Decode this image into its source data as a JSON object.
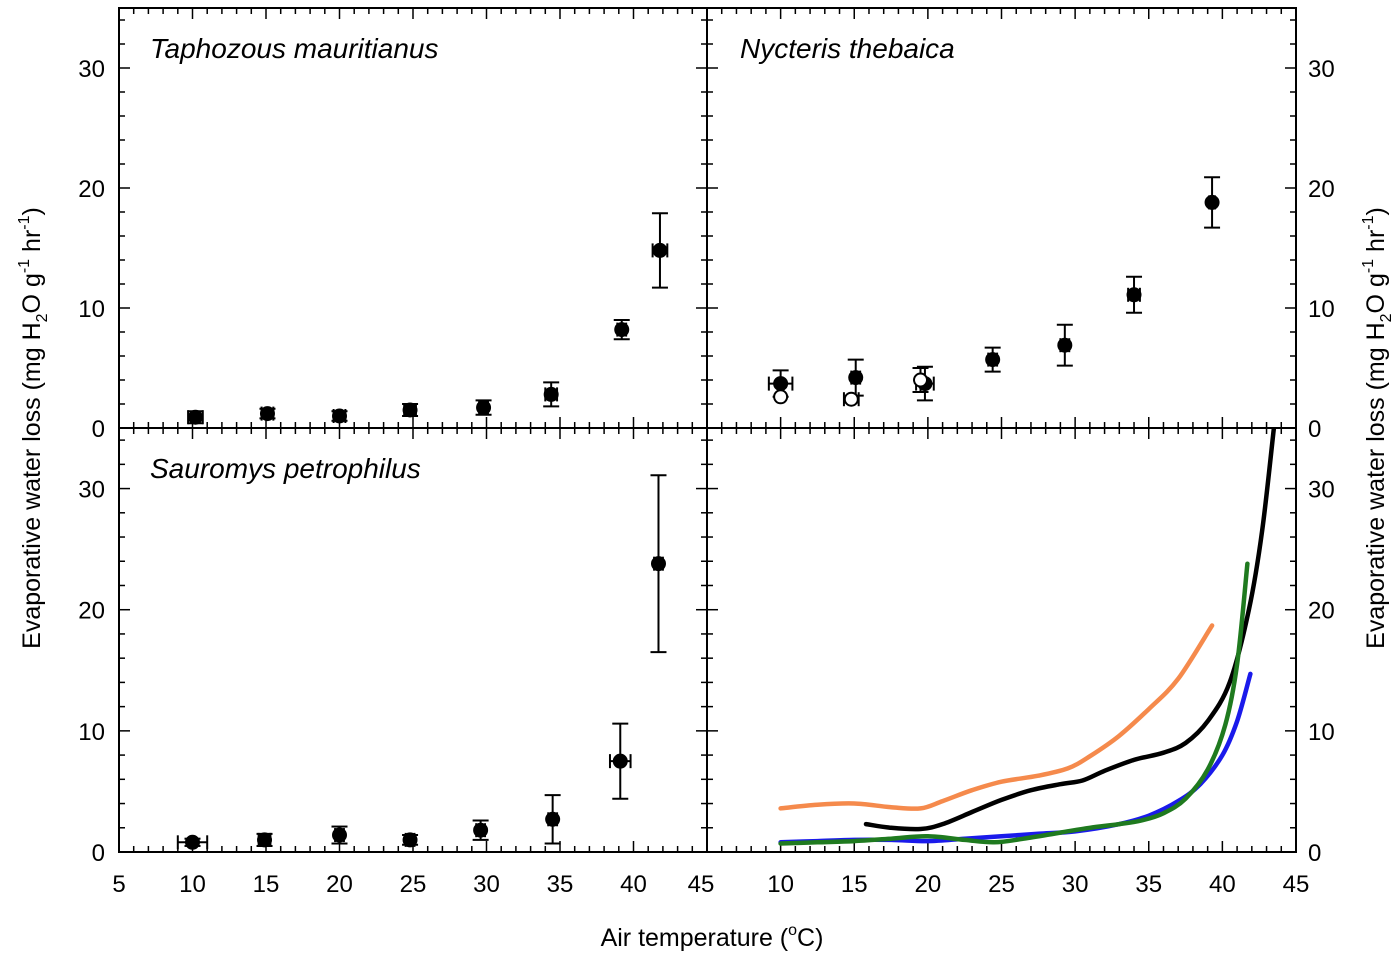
{
  "figure": {
    "xlabel_main": "Air temperature (",
    "xlabel_sup": "o",
    "xlabel_tail": "C)",
    "ylabel_main": "Evaporative water loss (mg H",
    "ylabel_sub": "2",
    "ylabel_mid1": "O g",
    "ylabel_sup1": "-1",
    "ylabel_mid2": " hr",
    "ylabel_sup2": "-1",
    "ylabel_tail": ")"
  },
  "chart_data": [
    {
      "panel": "top-left",
      "type": "scatter",
      "title": "Taphozous mauritianus",
      "xlim": [
        5,
        45
      ],
      "ylim": [
        0,
        35
      ],
      "yticks": [
        0,
        10,
        20,
        30
      ],
      "series": [
        {
          "filled": true,
          "color": "#000000",
          "points": [
            {
              "x": 10.2,
              "y": 0.9,
              "yerr": 0.5,
              "xerr": 0.5
            },
            {
              "x": 15.1,
              "y": 1.2,
              "yerr": 0.4,
              "xerr": 0.4
            },
            {
              "x": 20.0,
              "y": 1.0,
              "yerr": 0.4,
              "xerr": 0.4
            },
            {
              "x": 24.8,
              "y": 1.5,
              "yerr": 0.5,
              "xerr": 0.4
            },
            {
              "x": 29.8,
              "y": 1.7,
              "yerr": 0.6,
              "xerr": 0.3
            },
            {
              "x": 34.4,
              "y": 2.8,
              "yerr": 1.0,
              "xerr": 0.4
            },
            {
              "x": 39.2,
              "y": 8.2,
              "yerr": 0.8,
              "xerr": 0.3
            },
            {
              "x": 41.8,
              "y": 14.8,
              "yerr": 3.1,
              "xerr": 0.5
            }
          ]
        }
      ]
    },
    {
      "panel": "top-right",
      "type": "scatter",
      "title": "Nycteris thebaica",
      "xlim": [
        5,
        45
      ],
      "ylim": [
        0,
        35
      ],
      "yticks": [
        0,
        10,
        20,
        30
      ],
      "series": [
        {
          "filled": true,
          "color": "#000000",
          "points": [
            {
              "x": 10.0,
              "y": 3.7,
              "yerr": 1.1,
              "xerr": 0.8
            },
            {
              "x": 15.1,
              "y": 4.2,
              "yerr": 1.5,
              "xerr": 0.3
            },
            {
              "x": 19.8,
              "y": 3.7,
              "yerr": 1.4,
              "xerr": 0.6
            },
            {
              "x": 24.4,
              "y": 5.7,
              "yerr": 1.0,
              "xerr": 0.3
            },
            {
              "x": 29.3,
              "y": 6.9,
              "yerr": 1.7,
              "xerr": 0.3
            },
            {
              "x": 34.0,
              "y": 11.1,
              "yerr": 1.5,
              "xerr": 0.4
            },
            {
              "x": 39.3,
              "y": 18.8,
              "yerr": 2.1,
              "xerr": 0.2
            }
          ]
        },
        {
          "filled": false,
          "color": "#000000",
          "points": [
            {
              "x": 10.0,
              "y": 2.6,
              "yerr": 0,
              "xerr": 0
            },
            {
              "x": 14.8,
              "y": 2.4,
              "yerr": 0,
              "xerr": 0.5
            },
            {
              "x": 19.5,
              "y": 4.0,
              "yerr": 1.0,
              "xerr": 0
            }
          ]
        }
      ]
    },
    {
      "panel": "bottom-left",
      "type": "scatter",
      "title": "Sauromys petrophilus",
      "xlim": [
        5,
        45
      ],
      "ylim": [
        0,
        35
      ],
      "yticks": [
        0,
        10,
        20,
        30
      ],
      "xticks": [
        5,
        10,
        15,
        20,
        25,
        30,
        35,
        40,
        45
      ],
      "series": [
        {
          "filled": true,
          "color": "#000000",
          "points": [
            {
              "x": 10.0,
              "y": 0.8,
              "yerr": 0.3,
              "xerr": 1.0
            },
            {
              "x": 14.9,
              "y": 1.0,
              "yerr": 0.5,
              "xerr": 0.4
            },
            {
              "x": 20.0,
              "y": 1.4,
              "yerr": 0.7,
              "xerr": 0.3
            },
            {
              "x": 24.8,
              "y": 1.0,
              "yerr": 0.4,
              "xerr": 0.3
            },
            {
              "x": 29.6,
              "y": 1.8,
              "yerr": 0.8,
              "xerr": 0.3
            },
            {
              "x": 34.5,
              "y": 2.7,
              "yerr": 2.0,
              "xerr": 0.3
            },
            {
              "x": 39.1,
              "y": 7.5,
              "yerr": 3.1,
              "xerr": 0.7
            },
            {
              "x": 41.7,
              "y": 23.8,
              "yerr": 7.3,
              "xerr": 0.3
            }
          ]
        }
      ]
    },
    {
      "panel": "bottom-right",
      "type": "line",
      "title": "",
      "xlim": [
        5,
        45
      ],
      "ylim": [
        0,
        35
      ],
      "yticks": [
        0,
        10,
        20,
        30
      ],
      "xticks": [
        10,
        15,
        20,
        25,
        30,
        35,
        40,
        45
      ],
      "series": [
        {
          "color": "#f58a4c",
          "points": [
            [
              10,
              3.6
            ],
            [
              12.5,
              3.9
            ],
            [
              15,
              4.0
            ],
            [
              17.5,
              3.7
            ],
            [
              19.5,
              3.6
            ],
            [
              21,
              4.2
            ],
            [
              23,
              5.1
            ],
            [
              25,
              5.8
            ],
            [
              27.5,
              6.3
            ],
            [
              29.5,
              6.9
            ],
            [
              31,
              7.9
            ],
            [
              33,
              9.6
            ],
            [
              35,
              11.8
            ],
            [
              37,
              14.3
            ],
            [
              39.3,
              18.7
            ]
          ]
        },
        {
          "color": "#000000",
          "points": [
            [
              15.8,
              2.3
            ],
            [
              17.5,
              2.0
            ],
            [
              19.5,
              1.9
            ],
            [
              21,
              2.3
            ],
            [
              23,
              3.3
            ],
            [
              25,
              4.3
            ],
            [
              27,
              5.1
            ],
            [
              29,
              5.6
            ],
            [
              30.5,
              5.9
            ],
            [
              32,
              6.7
            ],
            [
              34,
              7.6
            ],
            [
              36,
              8.2
            ],
            [
              37.5,
              9.0
            ],
            [
              39,
              10.8
            ],
            [
              40.5,
              14.0
            ],
            [
              41.8,
              20.0
            ],
            [
              42.7,
              26.5
            ],
            [
              43.5,
              35
            ]
          ]
        },
        {
          "color": "#1a1aeb",
          "points": [
            [
              10,
              0.8
            ],
            [
              12.5,
              0.9
            ],
            [
              15,
              1.0
            ],
            [
              17.5,
              1.0
            ],
            [
              20,
              0.9
            ],
            [
              22.5,
              1.1
            ],
            [
              25,
              1.3
            ],
            [
              27.5,
              1.5
            ],
            [
              30,
              1.7
            ],
            [
              33,
              2.3
            ],
            [
              35,
              3.0
            ],
            [
              37,
              4.2
            ],
            [
              38.5,
              5.6
            ],
            [
              40,
              8.0
            ],
            [
              41,
              10.8
            ],
            [
              41.9,
              14.7
            ]
          ]
        },
        {
          "color": "#1f7a1f",
          "points": [
            [
              10,
              0.7
            ],
            [
              12.5,
              0.8
            ],
            [
              15,
              0.9
            ],
            [
              17.5,
              1.1
            ],
            [
              20,
              1.3
            ],
            [
              22.5,
              1.0
            ],
            [
              24.5,
              0.8
            ],
            [
              26.5,
              1.1
            ],
            [
              29,
              1.6
            ],
            [
              31,
              2.0
            ],
            [
              33,
              2.3
            ],
            [
              34.5,
              2.6
            ],
            [
              36,
              3.2
            ],
            [
              37.5,
              4.4
            ],
            [
              39,
              6.8
            ],
            [
              40.2,
              10.5
            ],
            [
              41,
              15.5
            ],
            [
              41.7,
              23.8
            ]
          ]
        }
      ]
    }
  ]
}
